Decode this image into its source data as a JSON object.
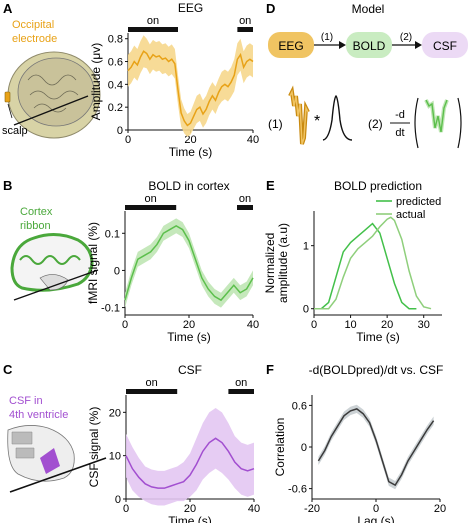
{
  "panels": {
    "A": {
      "letter": "A",
      "side_label": "Occipital\nelectrode",
      "scalp_label": "scalp",
      "chart_title": "EEG"
    },
    "B": {
      "letter": "B",
      "side_label": "Cortex\nribbon",
      "chart_title": "BOLD in cortex"
    },
    "C": {
      "letter": "C",
      "side_label": "CSF in\n4th ventricle",
      "chart_title": "CSF"
    },
    "D": {
      "letter": "D",
      "title": "Model",
      "nodes": [
        "EEG",
        "BOLD",
        "CSF"
      ],
      "arrow_labels": [
        "(1)",
        "(2)"
      ],
      "eq1_label": "(1)",
      "eq1_op": "*",
      "eq2_label": "(2)",
      "eq2_num": "-d",
      "eq2_den": "dt"
    },
    "E": {
      "letter": "E",
      "chart_title": "BOLD prediction"
    },
    "F": {
      "letter": "F",
      "chart_title": "-d(BOLDpred)/dt vs. CSF"
    }
  },
  "colors": {
    "eeg": "#e8a217",
    "eeg_band": "#f6d78c",
    "bold": "#5cbf4c",
    "bold_band": "#bfe6b4",
    "csf": "#a24fd0",
    "csf_band": "#e3c6f2",
    "corr": "#3a3a3a",
    "corr_band": "#c7cdd0",
    "node_eeg": "#f0c462",
    "node_bold": "#c9ecc1",
    "node_csf": "#ecdaf5"
  },
  "chart_data": [
    {
      "id": "A",
      "type": "line",
      "title": "EEG",
      "xlabel": "Time (s)",
      "ylabel": "Amplitude (μv)",
      "xlim": [
        0,
        40
      ],
      "ylim": [
        0,
        0.85
      ],
      "xticks": [
        0,
        20,
        40
      ],
      "yticks": [
        0,
        0.2,
        0.4,
        0.6,
        0.8
      ],
      "ytick_labels": [
        "0",
        "0.2",
        "0.4",
        "0.6",
        "0.8"
      ],
      "on_label": "on",
      "on_periods": [
        [
          0,
          16
        ],
        [
          35,
          40
        ]
      ],
      "series": [
        {
          "x": [
            0,
            1,
            2,
            3,
            4,
            5,
            6,
            7,
            8,
            9,
            10,
            11,
            12,
            13,
            14,
            15,
            16,
            17,
            18,
            19,
            20,
            21,
            22,
            23,
            24,
            25,
            26,
            27,
            28,
            29,
            30,
            31,
            32,
            33,
            34,
            35,
            36,
            37,
            38,
            39,
            40
          ],
          "y": [
            0.52,
            0.55,
            0.6,
            0.57,
            0.64,
            0.69,
            0.67,
            0.62,
            0.66,
            0.64,
            0.65,
            0.62,
            0.63,
            0.6,
            0.62,
            0.58,
            0.35,
            0.15,
            0.08,
            0.04,
            0.06,
            0.12,
            0.18,
            0.2,
            0.14,
            0.18,
            0.25,
            0.3,
            0.26,
            0.33,
            0.38,
            0.4,
            0.38,
            0.42,
            0.48,
            0.62,
            0.66,
            0.55,
            0.6,
            0.62,
            0.6
          ],
          "err": [
            0.14,
            0.14,
            0.14,
            0.14,
            0.14,
            0.14,
            0.13,
            0.13,
            0.13,
            0.13,
            0.13,
            0.13,
            0.13,
            0.13,
            0.13,
            0.13,
            0.13,
            0.12,
            0.11,
            0.1,
            0.1,
            0.11,
            0.12,
            0.12,
            0.12,
            0.12,
            0.12,
            0.12,
            0.12,
            0.12,
            0.13,
            0.13,
            0.13,
            0.13,
            0.14,
            0.14,
            0.14,
            0.14,
            0.14,
            0.14,
            0.14
          ]
        }
      ]
    },
    {
      "id": "B",
      "type": "line",
      "title": "BOLD in cortex",
      "xlabel": "Time (s)",
      "ylabel": "fMRI signal (%)",
      "xlim": [
        0,
        40
      ],
      "ylim": [
        -0.12,
        0.16
      ],
      "xticks": [
        0,
        20,
        40
      ],
      "yticks": [
        -0.1,
        0,
        0.1
      ],
      "ytick_labels": [
        "-0.1",
        "0",
        "0.1"
      ],
      "on_label": "on",
      "on_periods": [
        [
          0,
          16
        ],
        [
          35,
          40
        ]
      ],
      "series": [
        {
          "x": [
            0,
            2,
            4,
            6,
            8,
            10,
            12,
            14,
            16,
            18,
            20,
            22,
            24,
            26,
            28,
            30,
            32,
            34,
            36,
            38,
            40
          ],
          "y": [
            -0.08,
            -0.02,
            0.03,
            0.04,
            0.05,
            0.07,
            0.1,
            0.11,
            0.12,
            0.11,
            0.08,
            0.03,
            -0.02,
            -0.05,
            -0.07,
            -0.08,
            -0.06,
            -0.04,
            -0.06,
            -0.05,
            -0.02
          ],
          "err": [
            0.02,
            0.02,
            0.02,
            0.02,
            0.02,
            0.02,
            0.02,
            0.02,
            0.02,
            0.02,
            0.02,
            0.02,
            0.02,
            0.02,
            0.02,
            0.02,
            0.02,
            0.02,
            0.02,
            0.02,
            0.02
          ]
        }
      ]
    },
    {
      "id": "C",
      "type": "line",
      "title": "CSF",
      "xlabel": "Time (s)",
      "ylabel": "CSF signal (%)",
      "xlim": [
        0,
        40
      ],
      "ylim": [
        0,
        24
      ],
      "xticks": [
        0,
        20,
        40
      ],
      "yticks": [
        0,
        10,
        20
      ],
      "ytick_labels": [
        "0",
        "10",
        "20"
      ],
      "on_label": "on",
      "on_periods": [
        [
          0,
          16
        ],
        [
          32,
          40
        ]
      ],
      "series": [
        {
          "x": [
            0,
            2,
            4,
            6,
            8,
            10,
            12,
            14,
            16,
            18,
            20,
            22,
            24,
            26,
            28,
            30,
            32,
            34,
            36,
            38,
            40
          ],
          "y": [
            10,
            7,
            5,
            3.5,
            2.8,
            2.5,
            2.5,
            3,
            3.5,
            4,
            5.5,
            8,
            11,
            13,
            14,
            13,
            11,
            8.5,
            7,
            6.5,
            7
          ],
          "err": [
            5,
            5,
            4.5,
            4,
            4,
            4,
            4,
            4,
            4,
            4.5,
            5,
            6,
            6.5,
            7,
            7,
            7,
            6.5,
            6,
            6,
            6,
            6
          ]
        }
      ]
    },
    {
      "id": "E",
      "type": "line",
      "title": "BOLD prediction",
      "xlabel": "Time (s)",
      "ylabel": "Normalized\namplitude (a.u)",
      "xlim": [
        0,
        35
      ],
      "ylim": [
        -0.1,
        1.55
      ],
      "xticks": [
        0,
        10,
        20,
        30
      ],
      "yticks": [
        0,
        1
      ],
      "ytick_labels": [
        "0",
        "1"
      ],
      "legend": [
        "predicted",
        "actual"
      ],
      "series": [
        {
          "name": "predicted",
          "x": [
            0,
            2,
            4,
            6,
            8,
            10,
            12,
            14,
            16,
            18,
            20,
            22,
            24,
            26,
            28
          ],
          "y": [
            0,
            0,
            0.1,
            0.5,
            0.9,
            1.05,
            1.15,
            1.25,
            1.35,
            1.2,
            0.8,
            0.4,
            0.1,
            0,
            0
          ]
        },
        {
          "name": "actual",
          "x": [
            0,
            2,
            4,
            6,
            8,
            10,
            12,
            14,
            16,
            18,
            20,
            21,
            22,
            24,
            26,
            28,
            30,
            32
          ],
          "y": [
            0,
            0,
            0,
            0.15,
            0.5,
            0.8,
            0.95,
            1.05,
            1.15,
            1.3,
            1.42,
            1.45,
            1.4,
            1.1,
            0.6,
            0.2,
            0.03,
            0
          ]
        }
      ]
    },
    {
      "id": "F",
      "type": "line",
      "title": "-d(BOLDpred)/dt vs. CSF",
      "xlabel": "Lag (s)",
      "ylabel": "Correlation",
      "xlim": [
        -20,
        20
      ],
      "ylim": [
        -0.75,
        0.75
      ],
      "xticks": [
        -20,
        0,
        20
      ],
      "yticks": [
        -0.6,
        0,
        0.6
      ],
      "ytick_labels": [
        "-0.6",
        "0",
        "0.6"
      ],
      "series": [
        {
          "x": [
            -18,
            -16,
            -14,
            -12,
            -10,
            -8,
            -6,
            -4,
            -2,
            0,
            2,
            4,
            6,
            8,
            10,
            12,
            14,
            16,
            18
          ],
          "y": [
            -0.2,
            -0.05,
            0.15,
            0.3,
            0.45,
            0.52,
            0.55,
            0.48,
            0.35,
            0.1,
            -0.2,
            -0.5,
            -0.55,
            -0.4,
            -0.2,
            -0.05,
            0.1,
            0.25,
            0.38
          ],
          "err": [
            0.06,
            0.06,
            0.06,
            0.06,
            0.06,
            0.06,
            0.06,
            0.06,
            0.06,
            0.06,
            0.06,
            0.06,
            0.06,
            0.06,
            0.06,
            0.06,
            0.06,
            0.06,
            0.06
          ]
        }
      ]
    }
  ]
}
